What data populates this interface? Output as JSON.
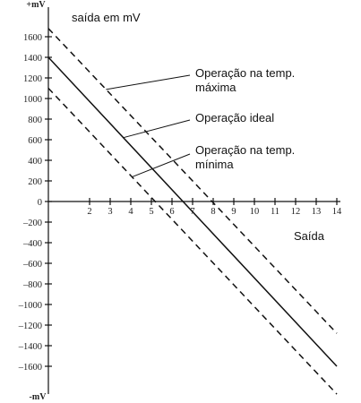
{
  "chart_data": {
    "type": "line",
    "ylabel_top": "+mV",
    "ylabel_bottom": "-mV",
    "series_label": "saída em mV",
    "xlabel": "Saída",
    "xlim": [
      0,
      15
    ],
    "ylim": [
      -1800,
      1800
    ],
    "x_ticks": [
      2,
      3,
      4,
      5,
      6,
      7,
      8,
      9,
      10,
      11,
      12,
      13,
      14
    ],
    "y_ticks": [
      1600,
      1400,
      1200,
      1000,
      800,
      600,
      400,
      200,
      0,
      -200,
      -400,
      -600,
      -800,
      -1000,
      -1200,
      -1400,
      -1600
    ],
    "y_tick_labels": [
      "1600",
      "1400",
      "1200",
      "1000",
      "800",
      "600",
      "400",
      "200",
      "0",
      "–200",
      "–400",
      "–600",
      "–800",
      "–1000",
      "–1200",
      "–1400",
      "–1600"
    ],
    "series": [
      {
        "name": "Operação na temp. máxima",
        "style": "dashed",
        "x": [
          0,
          14
        ],
        "y": [
          1680,
          -1280
        ]
      },
      {
        "name": "Operação ideal",
        "style": "solid",
        "x": [
          0,
          14
        ],
        "y": [
          1400,
          -1600
        ]
      },
      {
        "name": "Operação na temp. mínima",
        "style": "dashed",
        "x": [
          0,
          14
        ],
        "y": [
          1100,
          -1870
        ]
      }
    ],
    "annotations": [
      {
        "lines": [
          "Operação na temp.",
          "máxima"
        ],
        "target_series": 0
      },
      {
        "lines": [
          "Operação ideal"
        ],
        "target_series": 1
      },
      {
        "lines": [
          "Operação na temp.",
          "mínima"
        ],
        "target_series": 2
      }
    ],
    "grid": false,
    "legend": "none"
  }
}
